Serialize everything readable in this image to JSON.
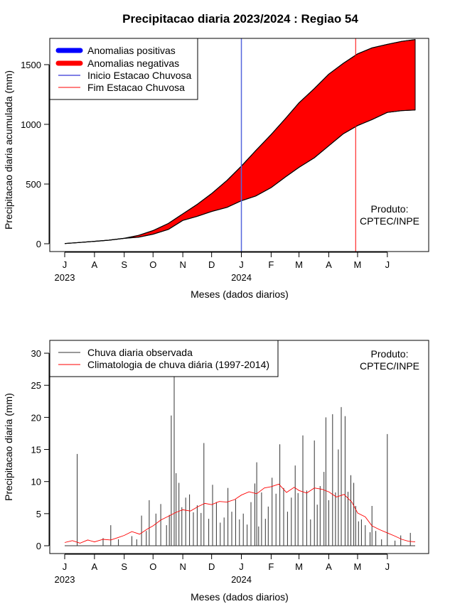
{
  "chart_data": [
    {
      "type": "area",
      "title": "Precipitacao diaria 2023/2024 : Regiao 54",
      "xlabel": "Meses (dados diarios)",
      "ylabel": "Precipitacao diaria acumulada (mm)",
      "xlim_days": [
        0,
        365
      ],
      "ylim": [
        0,
        1720
      ],
      "x_ticks": [
        {
          "label": "J",
          "day": 0
        },
        {
          "label": "A",
          "day": 31
        },
        {
          "label": "S",
          "day": 62
        },
        {
          "label": "O",
          "day": 92
        },
        {
          "label": "N",
          "day": 123
        },
        {
          "label": "D",
          "day": 153
        },
        {
          "label": "J",
          "day": 184
        },
        {
          "label": "F",
          "day": 215
        },
        {
          "label": "M",
          "day": 244
        },
        {
          "label": "A",
          "day": 275
        },
        {
          "label": "M",
          "day": 305
        },
        {
          "label": "J",
          "day": 336
        }
      ],
      "year_labels": [
        {
          "label": "2023",
          "day": 0
        },
        {
          "label": "2024",
          "day": 184
        }
      ],
      "y_ticks": [
        0,
        500,
        1000,
        1500
      ],
      "onset_day": 184,
      "end_day": 303,
      "legend": [
        {
          "label": "Anomalias positivas",
          "color": "#0000ff",
          "kind": "thick"
        },
        {
          "label": "Anomalias negativas",
          "color": "#ff0000",
          "kind": "thick"
        },
        {
          "label": "Inicio Estacao Chuvosa",
          "color": "#0000cc",
          "kind": "thin"
        },
        {
          "label": "Fim Estacao Chuvosa",
          "color": "#ff0000",
          "kind": "thin"
        }
      ],
      "annotation": [
        "Produto:",
        "CPTEC/INPE"
      ],
      "series": [
        {
          "name": "climatology_cumulative",
          "x_days": [
            0,
            15,
            31,
            46,
            62,
            77,
            92,
            108,
            123,
            138,
            153,
            169,
            184,
            199,
            215,
            230,
            244,
            260,
            275,
            290,
            305,
            320,
            336,
            351,
            365
          ],
          "values": [
            2,
            10,
            20,
            30,
            45,
            70,
            110,
            170,
            250,
            330,
            420,
            530,
            650,
            780,
            915,
            1050,
            1180,
            1300,
            1420,
            1510,
            1590,
            1640,
            1670,
            1695,
            1710
          ]
        },
        {
          "name": "observed_cumulative",
          "x_days": [
            0,
            15,
            31,
            46,
            62,
            77,
            92,
            108,
            123,
            138,
            153,
            169,
            184,
            199,
            215,
            230,
            244,
            260,
            275,
            290,
            305,
            320,
            336,
            351,
            365
          ],
          "values": [
            2,
            10,
            20,
            30,
            45,
            55,
            80,
            120,
            195,
            230,
            270,
            305,
            360,
            400,
            470,
            560,
            640,
            720,
            820,
            920,
            990,
            1040,
            1100,
            1115,
            1120
          ]
        }
      ]
    },
    {
      "type": "line",
      "xlabel": "Meses (dados diarios)",
      "ylabel": "Precipitacao diaria (mm)",
      "xlim_days": [
        0,
        365
      ],
      "ylim": [
        0,
        32
      ],
      "x_ticks": [
        {
          "label": "J",
          "day": 0
        },
        {
          "label": "A",
          "day": 31
        },
        {
          "label": "S",
          "day": 62
        },
        {
          "label": "O",
          "day": 92
        },
        {
          "label": "N",
          "day": 123
        },
        {
          "label": "D",
          "day": 153
        },
        {
          "label": "J",
          "day": 184
        },
        {
          "label": "F",
          "day": 215
        },
        {
          "label": "M",
          "day": 244
        },
        {
          "label": "A",
          "day": 275
        },
        {
          "label": "M",
          "day": 305
        },
        {
          "label": "J",
          "day": 336
        }
      ],
      "year_labels": [
        {
          "label": "2023",
          "day": 0
        },
        {
          "label": "2024",
          "day": 184
        }
      ],
      "y_ticks": [
        0,
        5,
        10,
        15,
        20,
        25,
        30
      ],
      "legend": [
        {
          "label": "Chuva diaria observada",
          "color": "#333333"
        },
        {
          "label": "Climatologia de chuva diária (1997-2014)",
          "color": "#ff0000"
        }
      ],
      "annotation": [
        "Produto:",
        "CPTEC/INPE"
      ],
      "series": [
        {
          "name": "Chuva diaria observada",
          "type": "spikes",
          "points": [
            [
              13,
              14.3
            ],
            [
              40,
              1.2
            ],
            [
              48,
              3.2
            ],
            [
              56,
              1.0
            ],
            [
              70,
              1.5
            ],
            [
              75,
              1.0
            ],
            [
              80,
              4.7
            ],
            [
              85,
              2.3
            ],
            [
              88,
              7.1
            ],
            [
              95,
              5.0
            ],
            [
              100,
              6.5
            ],
            [
              106,
              3.2
            ],
            [
              109,
              4.8
            ],
            [
              111,
              20.3
            ],
            [
              114,
              27.5
            ],
            [
              116,
              11.3
            ],
            [
              119,
              9.8
            ],
            [
              122,
              6.0
            ],
            [
              126,
              7.5
            ],
            [
              130,
              8.0
            ],
            [
              134,
              5.2
            ],
            [
              138,
              6.3
            ],
            [
              142,
              5.1
            ],
            [
              145,
              16.0
            ],
            [
              150,
              4.2
            ],
            [
              154,
              9.5
            ],
            [
              158,
              6.8
            ],
            [
              162,
              3.6
            ],
            [
              166,
              4.4
            ],
            [
              170,
              9.0
            ],
            [
              174,
              5.3
            ],
            [
              178,
              7.2
            ],
            [
              182,
              4.1
            ],
            [
              186,
              5.0
            ],
            [
              190,
              3.3
            ],
            [
              194,
              6.8
            ],
            [
              198,
              9.7
            ],
            [
              200,
              13.0
            ],
            [
              202,
              3.0
            ],
            [
              205,
              8.3
            ],
            [
              209,
              4.2
            ],
            [
              212,
              6.1
            ],
            [
              216,
              10.6
            ],
            [
              220,
              8.1
            ],
            [
              224,
              15.8
            ],
            [
              228,
              9.0
            ],
            [
              232,
              5.3
            ],
            [
              236,
              7.5
            ],
            [
              240,
              12.5
            ],
            [
              243,
              8.2
            ],
            [
              248,
              17.2
            ],
            [
              252,
              8.6
            ],
            [
              256,
              4.1
            ],
            [
              260,
              16.4
            ],
            [
              263,
              6.4
            ],
            [
              266,
              9.3
            ],
            [
              270,
              11.5
            ],
            [
              272,
              20.0
            ],
            [
              275,
              7.1
            ],
            [
              279,
              20.5
            ],
            [
              282,
              8.3
            ],
            [
              285,
              15.0
            ],
            [
              288,
              21.6
            ],
            [
              292,
              20.2
            ],
            [
              295,
              8.4
            ],
            [
              298,
              11.0
            ],
            [
              301,
              9.8
            ],
            [
              303,
              6.2
            ],
            [
              306,
              3.8
            ],
            [
              309,
              4.1
            ],
            [
              313,
              3.2
            ],
            [
              318,
              2.1
            ],
            [
              320,
              6.2
            ],
            [
              324,
              2.3
            ],
            [
              330,
              1.0
            ],
            [
              336,
              17.4
            ],
            [
              344,
              0.8
            ],
            [
              350,
              1.6
            ],
            [
              360,
              2.0
            ]
          ]
        },
        {
          "name": "Climatologia de chuva diária (1997-2014)",
          "type": "line",
          "x_days": [
            0,
            8,
            16,
            24,
            31,
            40,
            48,
            56,
            62,
            70,
            78,
            86,
            92,
            100,
            108,
            116,
            123,
            131,
            139,
            146,
            153,
            161,
            169,
            177,
            184,
            192,
            200,
            208,
            215,
            223,
            231,
            239,
            244,
            252,
            260,
            268,
            275,
            283,
            291,
            299,
            305,
            313,
            320,
            328,
            336,
            344,
            351,
            358,
            365
          ],
          "values": [
            0.5,
            0.8,
            0.4,
            0.9,
            0.6,
            1.0,
            0.9,
            1.3,
            1.6,
            2.2,
            1.8,
            2.6,
            3.1,
            4.0,
            4.6,
            5.2,
            5.6,
            5.4,
            6.1,
            6.6,
            6.4,
            6.9,
            6.8,
            7.2,
            7.9,
            8.4,
            8.1,
            9.0,
            9.2,
            9.6,
            8.3,
            9.1,
            8.6,
            8.2,
            9.0,
            8.8,
            8.4,
            7.6,
            8.0,
            6.8,
            5.1,
            4.5,
            3.1,
            2.5,
            2.0,
            1.5,
            1.0,
            0.7,
            0.6
          ]
        }
      ]
    }
  ]
}
